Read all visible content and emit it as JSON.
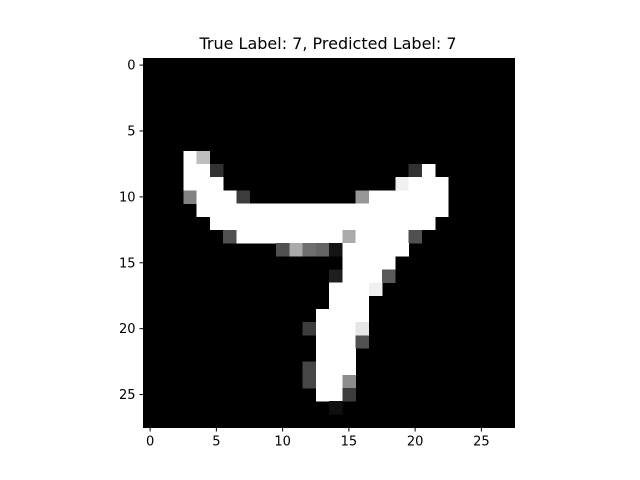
{
  "chart_data": {
    "type": "heatmap",
    "title": "True Label: 7, Predicted Label: 7",
    "colormap": "gray",
    "value_range": [
      0,
      255
    ],
    "xlim": [
      -0.5,
      27.5
    ],
    "ylim": [
      27.5,
      -0.5
    ],
    "xticks": [
      0,
      5,
      10,
      15,
      20,
      25
    ],
    "yticks": [
      0,
      5,
      10,
      15,
      20,
      25
    ],
    "grid": false,
    "pixels": [
      [
        7,
        3,
        255
      ],
      [
        7,
        4,
        190
      ],
      [
        8,
        3,
        255
      ],
      [
        8,
        4,
        255
      ],
      [
        8,
        5,
        50
      ],
      [
        8,
        20,
        50
      ],
      [
        8,
        21,
        255
      ],
      [
        9,
        3,
        255
      ],
      [
        9,
        4,
        255
      ],
      [
        9,
        5,
        255
      ],
      [
        9,
        19,
        240
      ],
      [
        9,
        20,
        255
      ],
      [
        9,
        21,
        255
      ],
      [
        9,
        22,
        255
      ],
      [
        10,
        3,
        130
      ],
      [
        10,
        4,
        255
      ],
      [
        10,
        5,
        255
      ],
      [
        10,
        6,
        255
      ],
      [
        10,
        7,
        60
      ],
      [
        10,
        16,
        150
      ],
      [
        10,
        17,
        255
      ],
      [
        10,
        18,
        255
      ],
      [
        10,
        19,
        255
      ],
      [
        10,
        20,
        255
      ],
      [
        10,
        21,
        255
      ],
      [
        10,
        22,
        255
      ],
      [
        11,
        4,
        255
      ],
      [
        11,
        5,
        255
      ],
      [
        11,
        6,
        255
      ],
      [
        11,
        7,
        255
      ],
      [
        11,
        8,
        255
      ],
      [
        11,
        9,
        255
      ],
      [
        11,
        10,
        255
      ],
      [
        11,
        11,
        255
      ],
      [
        11,
        12,
        255
      ],
      [
        11,
        13,
        255
      ],
      [
        11,
        14,
        255
      ],
      [
        11,
        15,
        255
      ],
      [
        11,
        16,
        255
      ],
      [
        11,
        17,
        255
      ],
      [
        11,
        18,
        255
      ],
      [
        11,
        19,
        255
      ],
      [
        11,
        20,
        255
      ],
      [
        11,
        21,
        255
      ],
      [
        11,
        22,
        255
      ],
      [
        12,
        5,
        255
      ],
      [
        12,
        6,
        255
      ],
      [
        12,
        7,
        255
      ],
      [
        12,
        8,
        255
      ],
      [
        12,
        9,
        255
      ],
      [
        12,
        10,
        255
      ],
      [
        12,
        11,
        255
      ],
      [
        12,
        12,
        255
      ],
      [
        12,
        13,
        255
      ],
      [
        12,
        14,
        255
      ],
      [
        12,
        15,
        255
      ],
      [
        12,
        16,
        255
      ],
      [
        12,
        17,
        255
      ],
      [
        12,
        18,
        255
      ],
      [
        12,
        19,
        255
      ],
      [
        12,
        20,
        255
      ],
      [
        12,
        21,
        255
      ],
      [
        13,
        6,
        80
      ],
      [
        13,
        7,
        255
      ],
      [
        13,
        8,
        255
      ],
      [
        13,
        9,
        255
      ],
      [
        13,
        10,
        255
      ],
      [
        13,
        11,
        255
      ],
      [
        13,
        12,
        255
      ],
      [
        13,
        13,
        255
      ],
      [
        13,
        14,
        255
      ],
      [
        13,
        15,
        170
      ],
      [
        13,
        16,
        255
      ],
      [
        13,
        17,
        255
      ],
      [
        13,
        18,
        255
      ],
      [
        13,
        19,
        255
      ],
      [
        13,
        20,
        80
      ],
      [
        14,
        10,
        80
      ],
      [
        14,
        11,
        170
      ],
      [
        14,
        12,
        110
      ],
      [
        14,
        13,
        100
      ],
      [
        14,
        14,
        20
      ],
      [
        14,
        15,
        255
      ],
      [
        14,
        16,
        255
      ],
      [
        14,
        17,
        255
      ],
      [
        14,
        18,
        255
      ],
      [
        14,
        19,
        255
      ],
      [
        15,
        15,
        255
      ],
      [
        15,
        16,
        255
      ],
      [
        15,
        17,
        255
      ],
      [
        15,
        18,
        255
      ],
      [
        16,
        14,
        30
      ],
      [
        16,
        15,
        255
      ],
      [
        16,
        16,
        255
      ],
      [
        16,
        17,
        255
      ],
      [
        16,
        18,
        90
      ],
      [
        17,
        14,
        255
      ],
      [
        17,
        15,
        255
      ],
      [
        17,
        16,
        255
      ],
      [
        17,
        17,
        240
      ],
      [
        18,
        14,
        255
      ],
      [
        18,
        15,
        255
      ],
      [
        18,
        16,
        255
      ],
      [
        19,
        13,
        255
      ],
      [
        19,
        14,
        255
      ],
      [
        19,
        15,
        255
      ],
      [
        19,
        16,
        255
      ],
      [
        20,
        12,
        60
      ],
      [
        20,
        13,
        255
      ],
      [
        20,
        14,
        255
      ],
      [
        20,
        15,
        255
      ],
      [
        20,
        16,
        230
      ],
      [
        21,
        13,
        255
      ],
      [
        21,
        14,
        255
      ],
      [
        21,
        15,
        255
      ],
      [
        21,
        16,
        80
      ],
      [
        22,
        13,
        255
      ],
      [
        22,
        14,
        255
      ],
      [
        22,
        15,
        255
      ],
      [
        23,
        12,
        70
      ],
      [
        23,
        13,
        255
      ],
      [
        23,
        14,
        255
      ],
      [
        23,
        15,
        255
      ],
      [
        24,
        12,
        70
      ],
      [
        24,
        13,
        255
      ],
      [
        24,
        14,
        255
      ],
      [
        24,
        15,
        140
      ],
      [
        25,
        13,
        255
      ],
      [
        25,
        14,
        255
      ],
      [
        25,
        15,
        60
      ],
      [
        26,
        14,
        15
      ]
    ]
  }
}
